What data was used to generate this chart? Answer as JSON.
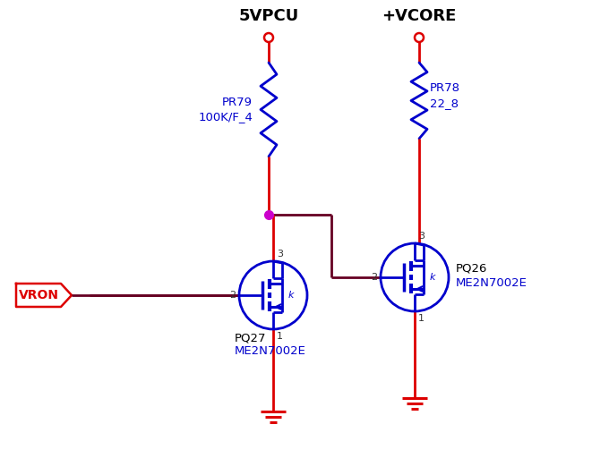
{
  "bg_color": "#ffffff",
  "wire_red": "#dd0000",
  "wire_dark": "#660022",
  "comp_blue": "#0000cc",
  "junction_magenta": "#cc00cc",
  "ground_red": "#dd0000",
  "label_5vpcu": "5VPCU",
  "label_vcore": "+VCORE",
  "label_vron": "VRON",
  "label_pq27a": "PQ27",
  "label_pq27b": "ME2N7002E",
  "label_pq26a": "PQ26",
  "label_pq26b": "ME2N7002E",
  "label_pr79": "PR79\n100K/F_4",
  "label_pr78": "PR78\n22_8",
  "figw": 6.8,
  "figh": 5.12,
  "dpi": 100
}
